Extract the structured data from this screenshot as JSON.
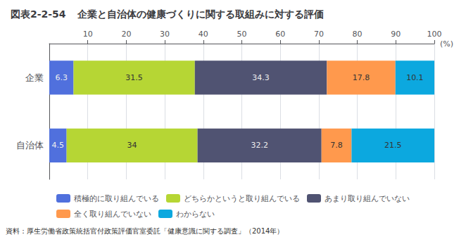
{
  "chart_data": {
    "type": "bar",
    "orientation": "horizontal",
    "stacked": true,
    "data_labels": true,
    "legend": "bottom",
    "grid": true,
    "title": "企業と自治体の健康づくりに関する取組みに対する評価",
    "annotations": [
      "図表2-2-54",
      "資料：厚生労働省政策統括官付政策評価官室委託「健康意識に関する調査」（2014年）"
    ],
    "xlabel": "(%)",
    "categories": [
      "企業",
      "自治体"
    ],
    "series": [
      {
        "name": "積極的に取り組んでいる",
        "values": [
          6.3,
          4.5
        ]
      },
      {
        "name": "どちらかというと取り組んでいる",
        "values": [
          31.5,
          34.0
        ]
      },
      {
        "name": "あまり取り組んでいない",
        "values": [
          34.3,
          32.2
        ]
      },
      {
        "name": "全く取り組んでいない",
        "values": [
          17.8,
          7.8
        ]
      },
      {
        "name": "わからない",
        "values": [
          10.1,
          21.5
        ]
      }
    ],
    "xlim": [
      0,
      100
    ],
    "xticks": [
      10,
      20,
      30,
      40,
      50,
      60,
      70,
      80,
      90,
      100
    ]
  }
}
